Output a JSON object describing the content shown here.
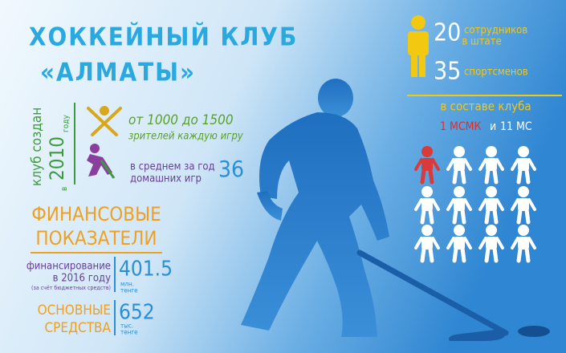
{
  "title": {
    "line1": "ХОККЕЙНЫЙ КЛУБ",
    "line2": "«АЛМАТЫ»"
  },
  "founded": {
    "label": "клуб создан",
    "prefix": "в",
    "year": 2010,
    "suffix": "году"
  },
  "spectators": {
    "range": "от 1000 до 1500",
    "label": "зрителей каждую игру"
  },
  "home_games": {
    "label1": "в среднем за год",
    "label2": "домашних игр",
    "value": 36
  },
  "finance": {
    "heading1": "ФИНАНСОВЫЕ",
    "heading2": "ПОКАЗАТЕЛИ",
    "funding": {
      "label1": "финансирование",
      "label2": "в 2016 году",
      "note": "(за счёт бюджетных средств)",
      "value": 401.5,
      "unit1": "млн.",
      "unit2": "тенге"
    },
    "assets": {
      "label1": "ОСНОВНЫЕ",
      "label2": "СРЕДСТВА",
      "value": 652,
      "unit1": "тыс.",
      "unit2": "тенге"
    }
  },
  "staff": {
    "employees": {
      "value": 20,
      "label1": "сотрудников",
      "label2": "в штате"
    },
    "athletes": {
      "value": 35,
      "label": "спортсменов"
    },
    "composition": "в составе клуба",
    "msmk": "1 МСМК",
    "and": "и",
    "ms": "11 МС"
  }
}
